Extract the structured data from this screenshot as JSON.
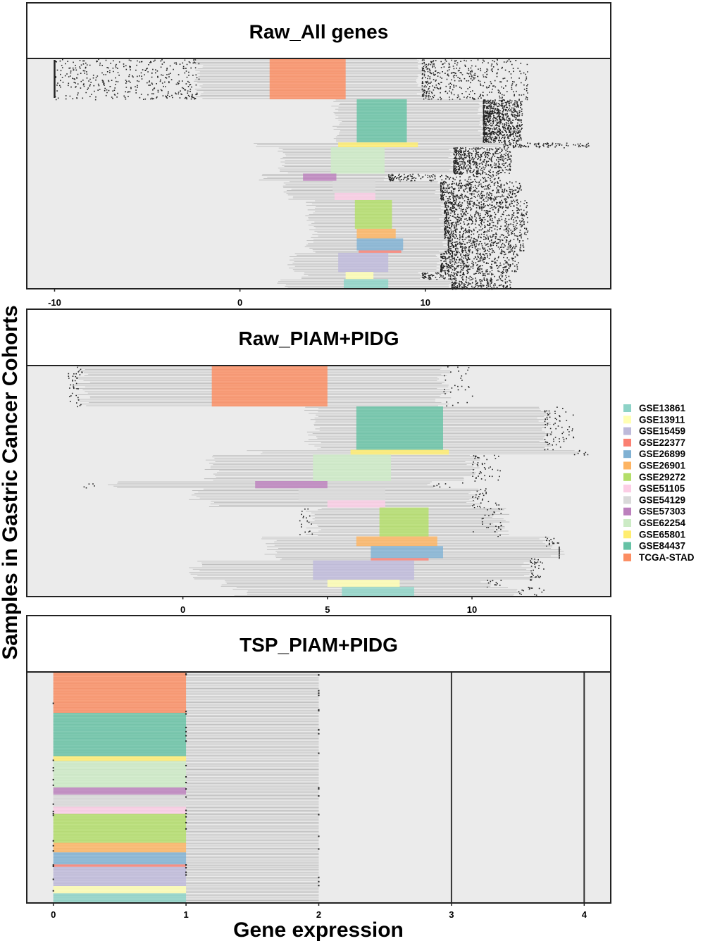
{
  "figure": {
    "ylabel": "Samples in Gastric Cancer Cohorts",
    "xlabel": "Gene expression"
  },
  "legend": [
    {
      "label": "GSE13861",
      "color": "#8dd3c7"
    },
    {
      "label": "GSE13911",
      "color": "#ffffb3"
    },
    {
      "label": "GSE15459",
      "color": "#bebada"
    },
    {
      "label": "GSE22377",
      "color": "#fb8072"
    },
    {
      "label": "GSE26899",
      "color": "#80b1d3"
    },
    {
      "label": "GSE26901",
      "color": "#fdb462"
    },
    {
      "label": "GSE29272",
      "color": "#b3de69"
    },
    {
      "label": "GSE51105",
      "color": "#fccde5"
    },
    {
      "label": "GSE54129",
      "color": "#d9d9d9"
    },
    {
      "label": "GSE57303",
      "color": "#bc80bd"
    },
    {
      "label": "GSE62254",
      "color": "#ccebc5"
    },
    {
      "label": "GSE65801",
      "color": "#ffed6f"
    },
    {
      "label": "GSE84437",
      "color": "#66c2a5"
    },
    {
      "label": "TCGA-STAD",
      "color": "#fc8d62"
    }
  ],
  "colors": {
    "panel_bg": "#ebebeb",
    "whisker": "#b8b8b8",
    "outlier": "#222222",
    "frame": "#222222"
  },
  "chart_data": [
    {
      "type": "box",
      "title": "Raw_All genes",
      "xlim": [
        -11.5,
        20
      ],
      "xticks": [
        -10,
        0,
        10
      ],
      "outlier_density": "heavy",
      "cohorts": [
        {
          "name": "TCGA-STAD",
          "q1": 1.6,
          "q3": 5.7,
          "wlo": -2.2,
          "whi": 9.8,
          "omin": -10.0,
          "omax": 15.5,
          "share": 0.17
        },
        {
          "name": "GSE84437",
          "q1": 6.3,
          "q3": 9.0,
          "wlo": 5.2,
          "whi": 13.1,
          "omin": 13.1,
          "omax": 15.2,
          "share": 0.18
        },
        {
          "name": "GSE65801",
          "q1": 5.3,
          "q3": 9.6,
          "wlo": 0.8,
          "whi": 14.2,
          "omin": 14.2,
          "omax": 18.8,
          "share": 0.02
        },
        {
          "name": "GSE62254",
          "q1": 4.9,
          "q3": 7.8,
          "wlo": 2.3,
          "whi": 11.5,
          "omin": 11.5,
          "omax": 14.6,
          "share": 0.11
        },
        {
          "name": "GSE57303",
          "q1": 3.4,
          "q3": 5.2,
          "wlo": 1.3,
          "whi": 8.0,
          "omin": 8.0,
          "omax": 14.0,
          "share": 0.03
        },
        {
          "name": "GSE54129",
          "q1": 5.0,
          "q3": 7.3,
          "wlo": 2.6,
          "whi": 10.8,
          "omin": 10.8,
          "omax": 15.2,
          "share": 0.05
        },
        {
          "name": "GSE51105",
          "q1": 5.1,
          "q3": 7.3,
          "wlo": 2.6,
          "whi": 10.8,
          "omin": 10.8,
          "omax": 15.0,
          "share": 0.03
        },
        {
          "name": "GSE29272",
          "q1": 6.2,
          "q3": 8.2,
          "wlo": 3.8,
          "whi": 11.0,
          "omin": 11.0,
          "omax": 15.5,
          "share": 0.12
        },
        {
          "name": "GSE26901",
          "q1": 6.3,
          "q3": 8.4,
          "wlo": 4.0,
          "whi": 11.0,
          "omin": 11.0,
          "omax": 15.5,
          "share": 0.04
        },
        {
          "name": "GSE26899",
          "q1": 6.3,
          "q3": 8.8,
          "wlo": 3.7,
          "whi": 11.2,
          "omin": 11.2,
          "omax": 15.3,
          "share": 0.05
        },
        {
          "name": "GSE22377",
          "q1": 6.4,
          "q3": 8.7,
          "wlo": 4.0,
          "whi": 11.0,
          "omin": 11.0,
          "omax": 15.0,
          "share": 0.01
        },
        {
          "name": "GSE15459",
          "q1": 5.3,
          "q3": 8.0,
          "wlo": 2.8,
          "whi": 10.8,
          "omin": 10.8,
          "omax": 15.0,
          "share": 0.08
        },
        {
          "name": "GSE13911",
          "q1": 5.7,
          "q3": 7.2,
          "wlo": 3.5,
          "whi": 9.8,
          "omin": 9.8,
          "omax": 14.5,
          "share": 0.03
        },
        {
          "name": "GSE13861",
          "q1": 5.6,
          "q3": 8.0,
          "wlo": 2.3,
          "whi": 11.4,
          "omin": 11.4,
          "omax": 14.6,
          "share": 0.04
        }
      ]
    },
    {
      "type": "box",
      "title": "Raw_PIAM+PIDG",
      "xlim": [
        -5.4,
        14.8
      ],
      "xticks": [
        0,
        5,
        10
      ],
      "outlier_density": "light",
      "cohorts": [
        {
          "name": "TCGA-STAD",
          "q1": 1.0,
          "q3": 5.0,
          "wlo": -3.5,
          "whi": 9.0,
          "omin": -4.0,
          "omax": 10.0,
          "share": 0.17
        },
        {
          "name": "GSE84437",
          "q1": 6.0,
          "q3": 9.0,
          "wlo": 4.5,
          "whi": 12.5,
          "omin": 9.0,
          "omax": 13.5,
          "share": 0.18
        },
        {
          "name": "GSE65801",
          "q1": 5.8,
          "q3": 9.2,
          "wlo": 2.5,
          "whi": 13.5,
          "omin": 9.5,
          "omax": 14.0,
          "share": 0.02
        },
        {
          "name": "GSE62254",
          "q1": 4.5,
          "q3": 7.2,
          "wlo": 1.0,
          "whi": 10.0,
          "omin": 8.0,
          "omax": 11.0,
          "share": 0.11
        },
        {
          "name": "GSE57303",
          "q1": 2.5,
          "q3": 5.0,
          "wlo": -2.5,
          "whi": 8.5,
          "omin": -3.5,
          "omax": 10.0,
          "share": 0.03
        },
        {
          "name": "GSE54129",
          "q1": 4.0,
          "q3": 7.0,
          "wlo": 0.5,
          "whi": 10.0,
          "omin": 0.5,
          "omax": 10.5,
          "share": 0.05
        },
        {
          "name": "GSE51105",
          "q1": 5.0,
          "q3": 7.0,
          "wlo": 1.0,
          "whi": 10.0,
          "omin": 8.5,
          "omax": 11.0,
          "share": 0.03
        },
        {
          "name": "GSE29272",
          "q1": 6.8,
          "q3": 8.5,
          "wlo": 4.5,
          "whi": 11.0,
          "omin": 4.0,
          "omax": 10.0,
          "share": 0.12
        },
        {
          "name": "GSE26901",
          "q1": 6.0,
          "q3": 8.8,
          "wlo": 3.0,
          "whi": 12.5,
          "omin": 9.5,
          "omax": 13.0,
          "share": 0.04
        },
        {
          "name": "GSE26899",
          "q1": 6.5,
          "q3": 9.0,
          "wlo": 3.0,
          "whi": 13.0,
          "omin": 9.5,
          "omax": 13.0,
          "share": 0.05
        },
        {
          "name": "GSE22377",
          "q1": 6.5,
          "q3": 8.5,
          "wlo": 3.5,
          "whi": 12.0,
          "omin": 10.0,
          "omax": 12.5,
          "share": 0.01
        },
        {
          "name": "GSE15459",
          "q1": 4.5,
          "q3": 8.0,
          "wlo": 0.5,
          "whi": 12.0,
          "omin": 9.0,
          "omax": 12.5,
          "share": 0.08
        },
        {
          "name": "GSE13911",
          "q1": 5.0,
          "q3": 7.5,
          "wlo": 1.5,
          "whi": 10.5,
          "omin": 9.0,
          "omax": 11.0,
          "share": 0.03
        },
        {
          "name": "GSE13861",
          "q1": 5.5,
          "q3": 8.0,
          "wlo": 2.0,
          "whi": 11.5,
          "omin": 9.0,
          "omax": 12.5,
          "share": 0.04
        }
      ]
    },
    {
      "type": "box",
      "title": "TSP_PIAM+PIDG",
      "xlim": [
        -0.2,
        4.2
      ],
      "xticks": [
        0,
        1,
        2,
        3,
        4
      ],
      "vlines": [
        3,
        4
      ],
      "outlier_density": "sparse",
      "cohorts": [
        {
          "name": "TCGA-STAD",
          "q1": 0,
          "q3": 1,
          "wlo": 0,
          "whi": 2,
          "share": 0.17
        },
        {
          "name": "GSE84437",
          "q1": 0,
          "q3": 1,
          "wlo": 0,
          "whi": 2,
          "share": 0.18
        },
        {
          "name": "GSE65801",
          "q1": 0,
          "q3": 1,
          "wlo": 0,
          "whi": 2,
          "share": 0.02
        },
        {
          "name": "GSE62254",
          "q1": 0,
          "q3": 1,
          "wlo": 0,
          "whi": 2,
          "share": 0.11
        },
        {
          "name": "GSE57303",
          "q1": 0,
          "q3": 1,
          "wlo": 0,
          "whi": 2,
          "share": 0.03
        },
        {
          "name": "GSE54129",
          "q1": 0,
          "q3": 1,
          "wlo": 0,
          "whi": 2,
          "share": 0.05
        },
        {
          "name": "GSE51105",
          "q1": 0,
          "q3": 1,
          "wlo": 0,
          "whi": 2,
          "share": 0.03
        },
        {
          "name": "GSE29272",
          "q1": 0,
          "q3": 1,
          "wlo": 0,
          "whi": 2,
          "share": 0.12
        },
        {
          "name": "GSE26901",
          "q1": 0,
          "q3": 1,
          "wlo": 0,
          "whi": 2,
          "share": 0.04
        },
        {
          "name": "GSE26899",
          "q1": 0,
          "q3": 1,
          "wlo": 0,
          "whi": 2,
          "share": 0.05
        },
        {
          "name": "GSE22377",
          "q1": 0,
          "q3": 1,
          "wlo": 0,
          "whi": 2,
          "share": 0.01
        },
        {
          "name": "GSE15459",
          "q1": 0,
          "q3": 1,
          "wlo": 0,
          "whi": 2,
          "share": 0.08
        },
        {
          "name": "GSE13911",
          "q1": 0,
          "q3": 1,
          "wlo": 0,
          "whi": 2,
          "share": 0.03
        },
        {
          "name": "GSE13861",
          "q1": 0,
          "q3": 1,
          "wlo": 0,
          "whi": 2,
          "share": 0.04
        }
      ]
    }
  ]
}
